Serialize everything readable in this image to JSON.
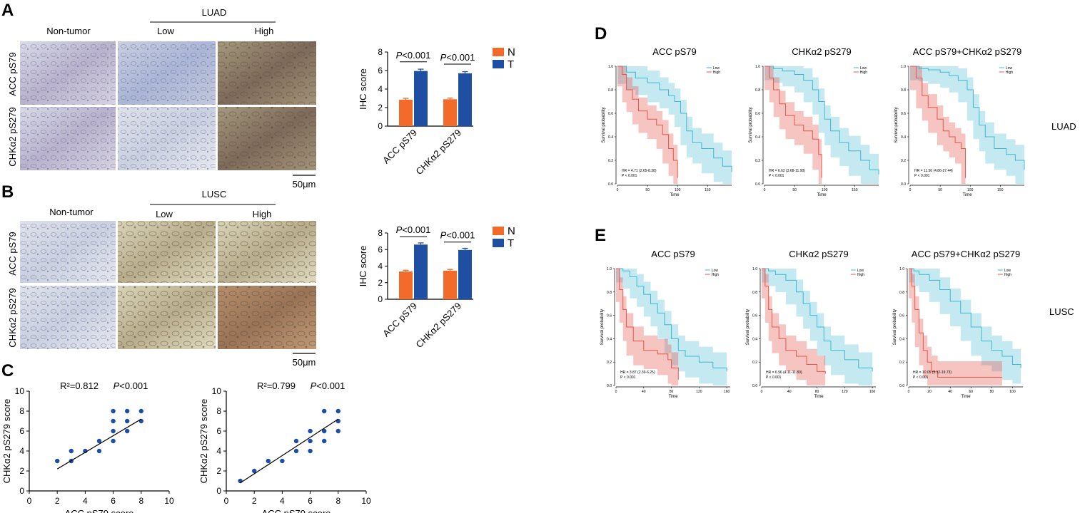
{
  "panels": {
    "A": {
      "letter": "A",
      "group": "LUAD",
      "cols": [
        "Non-tumor",
        "Low",
        "High"
      ],
      "rows": [
        "ACC pS79",
        "CHKα2 pS279"
      ],
      "scale": "50μm"
    },
    "B": {
      "letter": "B",
      "group": "LUSC",
      "cols": [
        "Non-tumor",
        "Low",
        "High"
      ],
      "rows": [
        "ACC pS79",
        "CHKα2 pS279"
      ],
      "scale": "50μm"
    },
    "C": {
      "letter": "C"
    },
    "D": {
      "letter": "D",
      "side_label": "LUAD"
    },
    "E": {
      "letter": "E",
      "side_label": "LUSC"
    }
  },
  "colors": {
    "N": "#f26b2b",
    "T": "#1f4fa3",
    "km_low": "#3fb7d0",
    "km_high": "#e4574c"
  },
  "chart_data": [
    {
      "id": "bar-A",
      "type": "bar",
      "ylabel": "IHC score",
      "ylim": [
        0,
        8
      ],
      "yticks": [
        "0",
        "2",
        "4",
        "6",
        "8"
      ],
      "categories": [
        "ACC pS79",
        "CHKα2 pS279"
      ],
      "series": [
        {
          "name": "N",
          "values": [
            2.85,
            2.9
          ],
          "err": [
            0.15,
            0.12
          ]
        },
        {
          "name": "T",
          "values": [
            5.95,
            5.7
          ],
          "err": [
            0.2,
            0.18
          ]
        }
      ],
      "annotations": [
        "P<0.001",
        "P<0.001"
      ],
      "legend": [
        "N",
        "T"
      ]
    },
    {
      "id": "bar-B",
      "type": "bar",
      "ylabel": "IHC score",
      "ylim": [
        0,
        8
      ],
      "yticks": [
        "0",
        "2",
        "4",
        "6",
        "8"
      ],
      "categories": [
        "ACC pS79",
        "CHKα2 pS279"
      ],
      "series": [
        {
          "name": "N",
          "values": [
            3.35,
            3.45
          ],
          "err": [
            0.15,
            0.15
          ]
        },
        {
          "name": "T",
          "values": [
            6.6,
            5.95
          ],
          "err": [
            0.2,
            0.2
          ]
        }
      ],
      "annotations": [
        "P<0.001",
        "P<0.001"
      ],
      "legend": [
        "N",
        "T"
      ]
    },
    {
      "id": "scatter-1",
      "type": "scatter",
      "xlabel": "ACC pS79 score",
      "ylabel": "CHKα2 pS279 score",
      "xlim": [
        0,
        10
      ],
      "ylim": [
        0,
        10
      ],
      "xticks": [
        "0",
        "2",
        "4",
        "6",
        "8",
        "10"
      ],
      "yticks": [
        "0",
        "2",
        "4",
        "6",
        "8",
        "10"
      ],
      "r2": "R²=0.812",
      "p": "P<0.001",
      "x": [
        2,
        3,
        3,
        4,
        5,
        5,
        6,
        6,
        6,
        6,
        7,
        7,
        7,
        8,
        8
      ],
      "y": [
        3,
        3,
        4,
        4,
        4,
        5,
        5,
        6,
        7,
        8,
        6,
        7,
        8,
        7,
        8
      ],
      "fit": [
        [
          2,
          2.2
        ],
        [
          8,
          7.2
        ]
      ]
    },
    {
      "id": "scatter-2",
      "type": "scatter",
      "xlabel": "ACC pS79 score",
      "ylabel": "CHKα2 pS279 score",
      "xlim": [
        0,
        10
      ],
      "ylim": [
        0,
        10
      ],
      "xticks": [
        "0",
        "2",
        "4",
        "6",
        "8",
        "10"
      ],
      "yticks": [
        "0",
        "2",
        "4",
        "6",
        "8",
        "10"
      ],
      "r2": "R²=0.799",
      "p": "P<0.001",
      "x": [
        1,
        2,
        3,
        4,
        5,
        5,
        6,
        6,
        6,
        7,
        7,
        7,
        8,
        8,
        8
      ],
      "y": [
        1,
        2,
        3,
        3,
        4,
        5,
        4,
        5,
        6,
        5,
        6,
        8,
        6,
        7,
        8
      ],
      "fit": [
        [
          1,
          0.8
        ],
        [
          8,
          7.2
        ]
      ]
    },
    {
      "id": "km-D1",
      "type": "line",
      "title": "ACC pS79",
      "xlabel": "Time",
      "ylabel": "Survival probability",
      "xlim": [
        0,
        190
      ],
      "xticks": [
        0,
        50,
        100,
        150
      ],
      "yticks": [
        "0.0",
        "0.2",
        "0.4",
        "0.6",
        "0.8",
        "1.0"
      ],
      "legend": [
        "Low",
        "High"
      ],
      "hr": "HR = 4.71 (2.65-8.38)",
      "p": "P < 0.001",
      "low": [
        [
          0,
          1
        ],
        [
          15,
          0.95
        ],
        [
          30,
          0.9
        ],
        [
          50,
          0.86
        ],
        [
          70,
          0.8
        ],
        [
          85,
          0.75
        ],
        [
          95,
          0.7
        ],
        [
          105,
          0.6
        ],
        [
          115,
          0.45
        ],
        [
          125,
          0.35
        ],
        [
          140,
          0.3
        ],
        [
          160,
          0.22
        ],
        [
          175,
          0.15
        ],
        [
          190,
          0.1
        ]
      ],
      "high": [
        [
          0,
          1
        ],
        [
          8,
          0.93
        ],
        [
          15,
          0.8
        ],
        [
          25,
          0.72
        ],
        [
          35,
          0.62
        ],
        [
          50,
          0.55
        ],
        [
          65,
          0.5
        ],
        [
          75,
          0.42
        ],
        [
          85,
          0.3
        ],
        [
          93,
          0.2
        ],
        [
          100,
          0.05
        ]
      ]
    },
    {
      "id": "km-D2",
      "type": "line",
      "title": "CHKα2 pS279",
      "xlabel": "Time",
      "ylabel": "Survival probability",
      "xlim": [
        0,
        190
      ],
      "xticks": [
        0,
        50,
        100,
        150
      ],
      "yticks": [
        "0.0",
        "0.2",
        "0.4",
        "0.6",
        "0.8",
        "1.0"
      ],
      "legend": [
        "Low",
        "High"
      ],
      "hr": "HR = 6.62 (3.68-11.90)",
      "p": "P < 0.001",
      "low": [
        [
          0,
          1
        ],
        [
          15,
          0.98
        ],
        [
          30,
          0.96
        ],
        [
          50,
          0.93
        ],
        [
          65,
          0.88
        ],
        [
          80,
          0.8
        ],
        [
          90,
          0.7
        ],
        [
          100,
          0.55
        ],
        [
          110,
          0.45
        ],
        [
          125,
          0.35
        ],
        [
          140,
          0.28
        ],
        [
          160,
          0.2
        ],
        [
          175,
          0.12
        ],
        [
          190,
          0.08
        ]
      ],
      "high": [
        [
          0,
          1
        ],
        [
          8,
          0.9
        ],
        [
          15,
          0.8
        ],
        [
          25,
          0.68
        ],
        [
          35,
          0.58
        ],
        [
          50,
          0.5
        ],
        [
          65,
          0.45
        ],
        [
          80,
          0.38
        ],
        [
          90,
          0.25
        ],
        [
          95,
          0.05
        ]
      ]
    },
    {
      "id": "km-D3",
      "type": "line",
      "title": "ACC pS79+CHKα2 pS279",
      "xlabel": "Time",
      "ylabel": "Survival probability",
      "xlim": [
        0,
        190
      ],
      "xticks": [
        0,
        50,
        100,
        150
      ],
      "yticks": [
        "0.0",
        "0.2",
        "0.4",
        "0.6",
        "0.8",
        "1.0"
      ],
      "legend": [
        "Low",
        "High"
      ],
      "hr": "HR = 11.56 (4.86-27.44)",
      "p": "P < 0.001",
      "low": [
        [
          0,
          1
        ],
        [
          15,
          0.98
        ],
        [
          30,
          0.97
        ],
        [
          50,
          0.95
        ],
        [
          65,
          0.92
        ],
        [
          80,
          0.88
        ],
        [
          95,
          0.8
        ],
        [
          105,
          0.65
        ],
        [
          115,
          0.5
        ],
        [
          125,
          0.4
        ],
        [
          140,
          0.3
        ],
        [
          160,
          0.25
        ],
        [
          175,
          0.2
        ],
        [
          190,
          0.12
        ]
      ],
      "high": [
        [
          0,
          1
        ],
        [
          10,
          0.9
        ],
        [
          20,
          0.75
        ],
        [
          30,
          0.65
        ],
        [
          45,
          0.55
        ],
        [
          55,
          0.45
        ],
        [
          65,
          0.4
        ],
        [
          75,
          0.35
        ],
        [
          85,
          0.3
        ],
        [
          92,
          0.05
        ]
      ]
    },
    {
      "id": "km-E1",
      "type": "line",
      "title": "ACC pS79",
      "xlabel": "Time",
      "ylabel": "Survival probability",
      "xlim": [
        0,
        165
      ],
      "xticks": [
        0,
        40,
        80,
        120,
        160
      ],
      "yticks": [
        "0.0",
        "0.2",
        "0.4",
        "0.6",
        "0.8",
        "1.0"
      ],
      "legend": [
        "Low",
        "High"
      ],
      "hr": "HR = 3.87 (2.39-6.25)",
      "p": "P < 0.001",
      "low": [
        [
          0,
          1
        ],
        [
          10,
          0.98
        ],
        [
          20,
          0.93
        ],
        [
          30,
          0.85
        ],
        [
          40,
          0.78
        ],
        [
          50,
          0.7
        ],
        [
          60,
          0.62
        ],
        [
          70,
          0.52
        ],
        [
          80,
          0.4
        ],
        [
          90,
          0.3
        ],
        [
          100,
          0.25
        ],
        [
          120,
          0.2
        ],
        [
          140,
          0.15
        ],
        [
          160,
          0.12
        ]
      ],
      "high": [
        [
          0,
          1
        ],
        [
          5,
          0.82
        ],
        [
          10,
          0.65
        ],
        [
          15,
          0.5
        ],
        [
          25,
          0.38
        ],
        [
          40,
          0.3
        ],
        [
          60,
          0.27
        ],
        [
          75,
          0.22
        ],
        [
          80,
          0.15
        ],
        [
          90,
          0.05
        ]
      ]
    },
    {
      "id": "km-E2",
      "type": "line",
      "title": "CHKα2 pS279",
      "xlabel": "Time",
      "ylabel": "Survival probability",
      "xlim": [
        0,
        165
      ],
      "xticks": [
        0,
        40,
        80,
        120,
        160
      ],
      "yticks": [
        "0.0",
        "0.2",
        "0.4",
        "0.6",
        "0.8",
        "1.0"
      ],
      "legend": [
        "Low",
        "High"
      ],
      "hr": "HR = 6.96 (4.11-11.80)",
      "p": "P < 0.001",
      "low": [
        [
          0,
          1
        ],
        [
          10,
          0.98
        ],
        [
          20,
          0.95
        ],
        [
          35,
          0.9
        ],
        [
          50,
          0.8
        ],
        [
          60,
          0.7
        ],
        [
          70,
          0.6
        ],
        [
          80,
          0.5
        ],
        [
          90,
          0.38
        ],
        [
          100,
          0.3
        ],
        [
          120,
          0.22
        ],
        [
          140,
          0.15
        ],
        [
          160,
          0.12
        ]
      ],
      "high": [
        [
          0,
          1
        ],
        [
          5,
          0.85
        ],
        [
          10,
          0.65
        ],
        [
          15,
          0.5
        ],
        [
          25,
          0.4
        ],
        [
          35,
          0.3
        ],
        [
          50,
          0.25
        ],
        [
          65,
          0.18
        ],
        [
          80,
          0.12
        ],
        [
          92,
          0.1
        ]
      ]
    },
    {
      "id": "km-E3",
      "type": "line",
      "title": "ACC pS79+CHKα2 pS279",
      "xlabel": "Time",
      "ylabel": "Survival probability",
      "xlim": [
        0,
        110
      ],
      "xticks": [
        0,
        20,
        40,
        60,
        80,
        100
      ],
      "yticks": [
        "0.0",
        "0.2",
        "0.4",
        "0.6",
        "0.8",
        "1.0"
      ],
      "legend": [
        "Low",
        "High"
      ],
      "hr": "HR = 10.05 (5.12-19.73)",
      "p": "P < 0.001",
      "low": [
        [
          0,
          1
        ],
        [
          5,
          0.98
        ],
        [
          10,
          0.95
        ],
        [
          20,
          0.9
        ],
        [
          30,
          0.82
        ],
        [
          40,
          0.72
        ],
        [
          50,
          0.62
        ],
        [
          60,
          0.5
        ],
        [
          70,
          0.38
        ],
        [
          80,
          0.3
        ],
        [
          90,
          0.25
        ],
        [
          100,
          0.18
        ],
        [
          108,
          0.15
        ]
      ],
      "high": [
        [
          0,
          1
        ],
        [
          3,
          0.85
        ],
        [
          6,
          0.65
        ],
        [
          10,
          0.45
        ],
        [
          14,
          0.3
        ],
        [
          18,
          0.2
        ],
        [
          22,
          0.12
        ],
        [
          28,
          0.07
        ],
        [
          90,
          0.07
        ]
      ]
    }
  ]
}
